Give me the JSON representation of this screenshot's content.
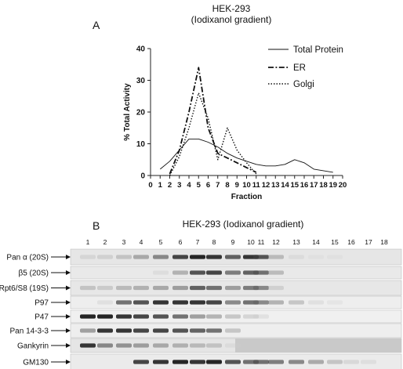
{
  "panel_a": {
    "letter": "A",
    "title_line1": "HEK-293",
    "title_line2": "(Iodixanol gradient)"
  },
  "panel_b": {
    "letter": "B",
    "title": "HEK-293 (Iodixanol gradient)",
    "fraction_numbers": [
      "1",
      "2",
      "3",
      "4",
      "5",
      "6",
      "7",
      "8",
      "9",
      "10",
      "11",
      "12",
      "13",
      "14",
      "15",
      "16",
      "17",
      "18"
    ],
    "blots": [
      {
        "label": "Pan α (20S)",
        "intensity": [
          0.15,
          0.2,
          0.3,
          0.45,
          0.6,
          0.85,
          0.95,
          0.9,
          0.75,
          0.9,
          0.8,
          0.35,
          0.1,
          0.05,
          0.05,
          0,
          0,
          0
        ]
      },
      {
        "label": "β5 (20S)",
        "intensity": [
          0,
          0,
          0,
          0,
          0.1,
          0.4,
          0.8,
          0.85,
          0.65,
          0.75,
          0.7,
          0.35,
          0,
          0,
          0,
          0,
          0,
          0
        ]
      },
      {
        "label": "Rpt6/S8 (19S)",
        "intensity": [
          0.3,
          0.25,
          0.35,
          0.4,
          0.45,
          0.5,
          0.75,
          0.7,
          0.5,
          0.65,
          0.6,
          0.2,
          0,
          0,
          0,
          0,
          0,
          0
        ]
      },
      {
        "label": "P97",
        "intensity": [
          0,
          0.1,
          0.7,
          0.8,
          0.9,
          0.9,
          0.9,
          0.85,
          0.6,
          0.7,
          0.6,
          0.4,
          0.3,
          0.1,
          0.05,
          0,
          0,
          0
        ]
      },
      {
        "label": "P47",
        "intensity": [
          0.95,
          0.95,
          0.9,
          0.85,
          0.8,
          0.7,
          0.5,
          0.4,
          0.3,
          0.2,
          0.1,
          0,
          0,
          0,
          0,
          0,
          0,
          0
        ]
      },
      {
        "label": "Pan 14-3-3",
        "intensity": [
          0.5,
          0.9,
          0.9,
          0.85,
          0.85,
          0.8,
          0.75,
          0.7,
          0.3,
          0,
          0,
          0,
          0,
          0,
          0,
          0,
          0,
          0
        ]
      },
      {
        "label": "Gankyrin",
        "intensity": [
          0.9,
          0.6,
          0.55,
          0.5,
          0.45,
          0.4,
          0.35,
          0.3,
          0.1,
          0,
          0,
          0,
          0,
          0,
          0,
          0,
          0,
          0
        ]
      },
      {
        "label": "GM130",
        "intensity": [
          0,
          0,
          0,
          0.85,
          0.9,
          0.95,
          0.9,
          0.95,
          0.8,
          0.7,
          0.7,
          0.65,
          0.6,
          0.45,
          0.3,
          0.15,
          0.1,
          0
        ]
      }
    ]
  },
  "chart_data": {
    "type": "line",
    "x": [
      0,
      1,
      2,
      3,
      4,
      5,
      6,
      7,
      8,
      9,
      10,
      11,
      12,
      13,
      14,
      15,
      16,
      17,
      18,
      19,
      20
    ],
    "series": [
      {
        "name": "Total Protein",
        "style": "solid",
        "values": [
          null,
          2,
          4.5,
          8,
          11.5,
          11.5,
          10.5,
          9,
          7,
          5.5,
          4.5,
          3.5,
          3,
          3,
          3.5,
          5,
          4,
          2,
          1.5,
          1,
          null
        ]
      },
      {
        "name": "ER",
        "style": "dash-dot",
        "values": [
          null,
          null,
          0.5,
          8,
          20,
          34,
          15,
          7,
          5.5,
          4,
          2.5,
          1,
          null,
          null,
          null,
          null,
          null,
          null,
          null,
          null,
          null
        ]
      },
      {
        "name": "Golgi",
        "style": "dotted",
        "values": [
          null,
          null,
          0,
          6,
          15,
          26,
          18,
          5,
          15,
          8,
          4,
          0.5,
          null,
          null,
          null,
          null,
          null,
          null,
          null,
          null,
          null
        ]
      }
    ],
    "xlabel": "Fraction",
    "ylabel": "% Total Activity",
    "xticks": [
      "0",
      "1",
      "2",
      "3",
      "4",
      "5",
      "6",
      "7",
      "8",
      "9",
      "10",
      "11",
      "12",
      "13",
      "14",
      "15",
      "16",
      "17",
      "18",
      "19",
      "20"
    ],
    "yticks": [
      "0",
      "10",
      "20",
      "30",
      "40"
    ],
    "xlim": [
      0,
      20
    ],
    "ylim": [
      0,
      40
    ],
    "legend_position": "right"
  }
}
